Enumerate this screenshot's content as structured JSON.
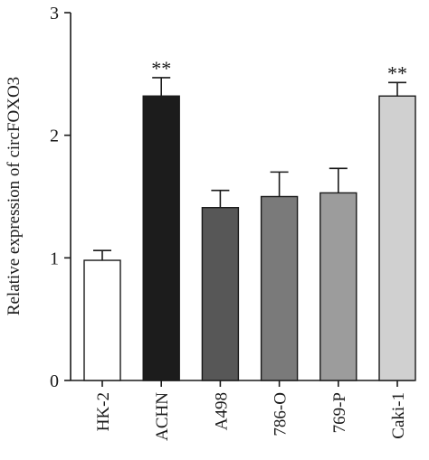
{
  "chart_data": {
    "type": "bar",
    "title": "",
    "xlabel": "",
    "ylabel": "Relative expression of circFOXO3",
    "ylim": [
      0,
      3
    ],
    "yticks": [
      "0",
      "1",
      "2",
      "3"
    ],
    "categories": [
      "HK-2",
      "ACHN",
      "A498",
      "786-O",
      "769-P",
      "Caki-1"
    ],
    "values": [
      0.98,
      2.32,
      1.41,
      1.5,
      1.53,
      2.32
    ],
    "errors": [
      0.08,
      0.15,
      0.14,
      0.2,
      0.2,
      0.11
    ],
    "annotations": [
      "",
      "**",
      "",
      "",
      "",
      "**"
    ],
    "bar_colors": [
      "#ffffff",
      "#1c1c1c",
      "#575757",
      "#7a7a7a",
      "#9c9c9c",
      "#d0d0d0"
    ],
    "grid": false,
    "legend": "none"
  }
}
